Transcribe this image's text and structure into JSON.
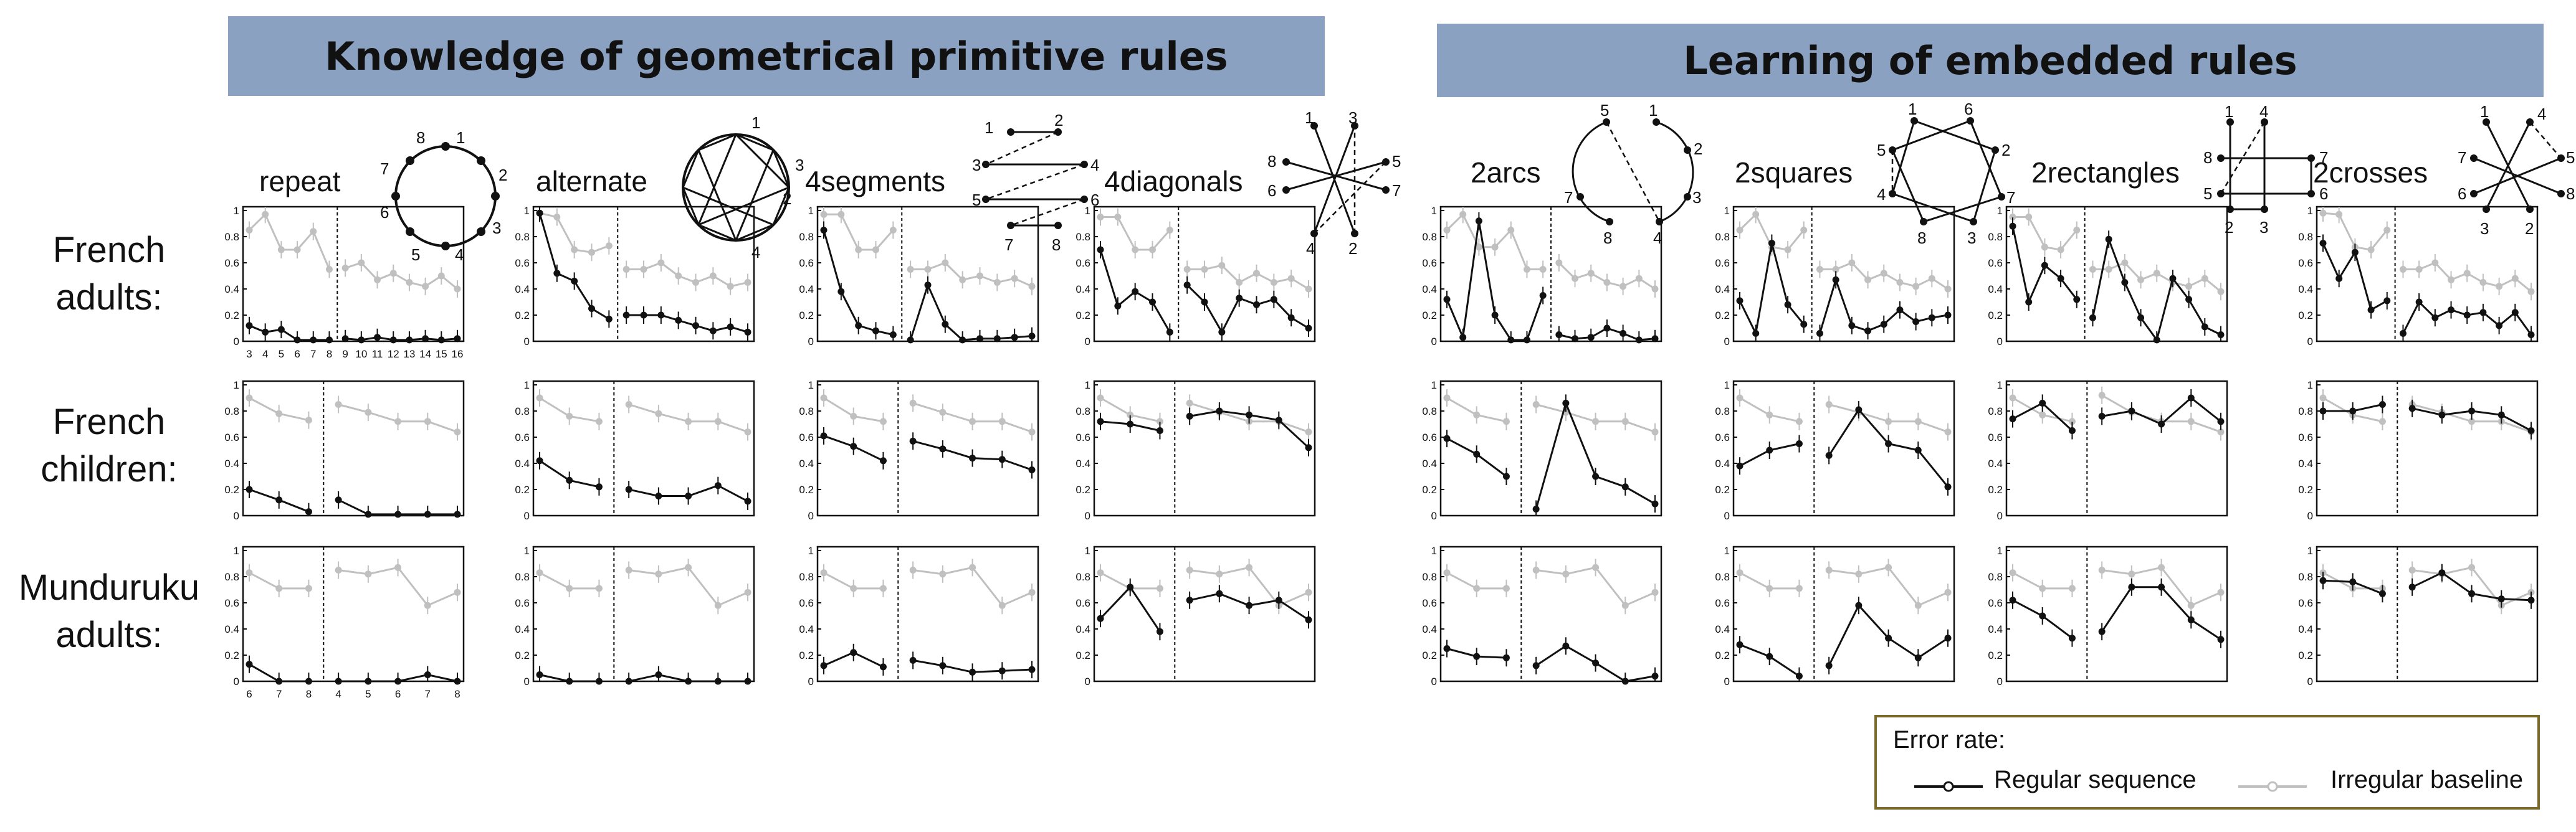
{
  "banners": {
    "left": "Knowledge of geometrical primitive rules",
    "right": "Learning of embedded rules"
  },
  "row_labels": [
    {
      "line1": "French",
      "line2": "adults:"
    },
    {
      "line1": "French",
      "line2": "children:"
    },
    {
      "line1": "Munduruku",
      "line2": "adults:"
    }
  ],
  "conditions": [
    "repeat",
    "alternate",
    "4segments",
    "4diagonals",
    "2arcs",
    "2squares",
    "2rectangles",
    "2crosses"
  ],
  "legend": {
    "title": "Error rate:",
    "regular": "Regular sequence",
    "irregular": "Irregular baseline",
    "regular_color": "#111111",
    "irregular_color": "#c0c0c0"
  },
  "icons": {
    "repeat": [
      "8",
      "1",
      "2",
      "3",
      "4",
      "5",
      "6",
      "7"
    ],
    "alternate": [
      "1",
      "3",
      "2",
      "4"
    ],
    "4segments": [
      "1",
      "2",
      "3",
      "4",
      "5",
      "6",
      "7",
      "8"
    ],
    "4diagonals": [
      "1",
      "3",
      "8",
      "5",
      "6",
      "7",
      "4",
      "2"
    ],
    "2arcs": [
      "5",
      "1",
      "2",
      "3",
      "4",
      "8",
      "7"
    ],
    "2squares": [
      "1",
      "6",
      "5",
      "2",
      "4",
      "7",
      "8",
      "3"
    ],
    "2rectangles": [
      "1",
      "4",
      "8",
      "7",
      "5",
      "6",
      "2",
      "3"
    ],
    "2crosses": [
      "1",
      "4",
      "7",
      "5",
      "6",
      "8",
      "3",
      "2"
    ]
  },
  "chart_data": {
    "type": "line",
    "ylim": [
      0,
      1
    ],
    "yticks": [
      "0",
      "0.2",
      "0.4",
      "0.6",
      "0.8",
      "1"
    ],
    "series_names": [
      "Regular sequence",
      "Irregular baseline"
    ],
    "xticks_row1": [
      "3",
      "4",
      "5",
      "6",
      "7",
      "8",
      "9",
      "10",
      "11",
      "12",
      "13",
      "14",
      "15",
      "16"
    ],
    "xticks_row3": [
      "6",
      "7",
      "8",
      "4",
      "5",
      "6",
      "7",
      "8"
    ],
    "panels": [
      {
        "row": 0,
        "condition": "repeat",
        "split": 6,
        "regular": [
          0.12,
          0.07,
          0.09,
          0.01,
          0.01,
          0.01,
          0.02,
          0.01,
          0.03,
          0.01,
          0.01,
          0.02,
          0.01,
          0.02
        ],
        "irregular": [
          0.85,
          0.97,
          0.7,
          0.7,
          0.84,
          0.55,
          0.56,
          0.6,
          0.47,
          0.52,
          0.45,
          0.42,
          0.5,
          0.4
        ]
      },
      {
        "row": 0,
        "condition": "alternate",
        "split": 5,
        "regular": [
          0.98,
          0.52,
          0.46,
          0.25,
          0.17,
          0.2,
          0.2,
          0.2,
          0.16,
          0.12,
          0.08,
          0.11,
          0.07
        ],
        "irregular": [
          0.98,
          0.95,
          0.7,
          0.68,
          0.73,
          0.55,
          0.55,
          0.6,
          0.5,
          0.45,
          0.5,
          0.42,
          0.45
        ]
      },
      {
        "row": 0,
        "condition": "4segments",
        "split": 5,
        "regular": [
          0.85,
          0.38,
          0.12,
          0.08,
          0.05,
          0.01,
          0.43,
          0.13,
          0.01,
          0.02,
          0.02,
          0.03,
          0.04
        ],
        "irregular": [
          0.97,
          0.97,
          0.7,
          0.7,
          0.85,
          0.55,
          0.55,
          0.6,
          0.47,
          0.5,
          0.45,
          0.48,
          0.42
        ]
      },
      {
        "row": 0,
        "condition": "4diagonals",
        "split": 5,
        "regular": [
          0.7,
          0.27,
          0.38,
          0.3,
          0.07,
          0.43,
          0.3,
          0.07,
          0.33,
          0.28,
          0.32,
          0.18,
          0.1
        ],
        "irregular": [
          0.95,
          0.95,
          0.7,
          0.7,
          0.85,
          0.55,
          0.55,
          0.58,
          0.45,
          0.52,
          0.45,
          0.48,
          0.4
        ]
      },
      {
        "row": 0,
        "condition": "2arcs",
        "split": 7,
        "regular": [
          0.32,
          0.03,
          0.92,
          0.2,
          0.01,
          0.01,
          0.35,
          0.05,
          0.02,
          0.03,
          0.1,
          0.06,
          0.01,
          0.02
        ],
        "irregular": [
          0.85,
          0.97,
          0.72,
          0.72,
          0.85,
          0.55,
          0.55,
          0.6,
          0.48,
          0.52,
          0.45,
          0.42,
          0.48,
          0.4
        ]
      },
      {
        "row": 0,
        "condition": "2squares",
        "split": 5,
        "regular": [
          0.31,
          0.06,
          0.75,
          0.28,
          0.13,
          0.06,
          0.47,
          0.12,
          0.08,
          0.13,
          0.24,
          0.15,
          0.18,
          0.2
        ],
        "irregular": [
          0.85,
          0.97,
          0.72,
          0.7,
          0.85,
          0.55,
          0.55,
          0.6,
          0.47,
          0.52,
          0.45,
          0.42,
          0.48,
          0.4
        ]
      },
      {
        "row": 0,
        "condition": "2rectangles",
        "split": 5,
        "regular": [
          0.88,
          0.3,
          0.58,
          0.48,
          0.32,
          0.18,
          0.78,
          0.45,
          0.18,
          0.01,
          0.48,
          0.32,
          0.11,
          0.05
        ],
        "irregular": [
          0.95,
          0.95,
          0.72,
          0.7,
          0.85,
          0.55,
          0.55,
          0.6,
          0.47,
          0.52,
          0.45,
          0.42,
          0.48,
          0.38
        ]
      },
      {
        "row": 0,
        "condition": "2crosses",
        "split": 5,
        "regular": [
          0.75,
          0.48,
          0.68,
          0.24,
          0.31,
          0.06,
          0.3,
          0.18,
          0.24,
          0.2,
          0.22,
          0.12,
          0.22,
          0.05
        ],
        "irregular": [
          0.98,
          0.97,
          0.72,
          0.7,
          0.85,
          0.55,
          0.55,
          0.6,
          0.47,
          0.52,
          0.45,
          0.42,
          0.48,
          0.38
        ]
      },
      {
        "row": 1,
        "condition": "repeat",
        "split": 3,
        "regular": [
          0.2,
          0.12,
          0.03,
          0.12,
          0.01,
          0.01,
          0.01,
          0.01
        ],
        "irregular": [
          0.9,
          0.78,
          0.73,
          0.85,
          0.79,
          0.72,
          0.72,
          0.64
        ]
      },
      {
        "row": 1,
        "condition": "alternate",
        "split": 3,
        "regular": [
          0.42,
          0.27,
          0.22,
          0.2,
          0.15,
          0.15,
          0.23,
          0.11
        ],
        "irregular": [
          0.9,
          0.76,
          0.72,
          0.85,
          0.78,
          0.72,
          0.72,
          0.64
        ]
      },
      {
        "row": 1,
        "condition": "4segments",
        "split": 3,
        "regular": [
          0.61,
          0.53,
          0.42,
          0.57,
          0.51,
          0.44,
          0.43,
          0.35
        ],
        "irregular": [
          0.9,
          0.76,
          0.72,
          0.86,
          0.79,
          0.72,
          0.72,
          0.64
        ]
      },
      {
        "row": 1,
        "condition": "4diagonals",
        "split": 3,
        "regular": [
          0.72,
          0.7,
          0.65,
          0.76,
          0.8,
          0.77,
          0.73,
          0.52
        ],
        "irregular": [
          0.9,
          0.77,
          0.72,
          0.86,
          0.79,
          0.72,
          0.72,
          0.64
        ]
      },
      {
        "row": 1,
        "condition": "2arcs",
        "split": 3,
        "regular": [
          0.59,
          0.47,
          0.3,
          0.05,
          0.86,
          0.3,
          0.22,
          0.09
        ],
        "irregular": [
          0.9,
          0.77,
          0.72,
          0.85,
          0.79,
          0.72,
          0.72,
          0.64
        ]
      },
      {
        "row": 1,
        "condition": "2squares",
        "split": 3,
        "regular": [
          0.38,
          0.5,
          0.55,
          0.46,
          0.81,
          0.55,
          0.5,
          0.22
        ],
        "irregular": [
          0.9,
          0.77,
          0.72,
          0.85,
          0.79,
          0.72,
          0.72,
          0.64
        ]
      },
      {
        "row": 1,
        "condition": "2rectangles",
        "split": 3,
        "regular": [
          0.74,
          0.86,
          0.65,
          0.76,
          0.8,
          0.7,
          0.9,
          0.72
        ],
        "irregular": [
          0.9,
          0.77,
          0.72,
          0.92,
          0.79,
          0.72,
          0.72,
          0.64
        ]
      },
      {
        "row": 1,
        "condition": "2crosses",
        "split": 3,
        "regular": [
          0.8,
          0.8,
          0.85,
          0.82,
          0.77,
          0.8,
          0.77,
          0.65
        ],
        "irregular": [
          0.9,
          0.77,
          0.72,
          0.85,
          0.79,
          0.72,
          0.72,
          0.64
        ]
      },
      {
        "row": 2,
        "condition": "repeat",
        "split": 3,
        "regular": [
          0.13,
          0.0,
          0.0,
          0.0,
          0.0,
          0.0,
          0.05,
          0.0
        ],
        "irregular": [
          0.83,
          0.71,
          0.71,
          0.85,
          0.82,
          0.87,
          0.58,
          0.68
        ]
      },
      {
        "row": 2,
        "condition": "alternate",
        "split": 3,
        "regular": [
          0.05,
          0.0,
          0.0,
          0.0,
          0.05,
          0.0,
          0.0,
          0.0
        ],
        "irregular": [
          0.83,
          0.71,
          0.71,
          0.85,
          0.82,
          0.87,
          0.58,
          0.68
        ]
      },
      {
        "row": 2,
        "condition": "4segments",
        "split": 3,
        "regular": [
          0.12,
          0.22,
          0.11,
          0.16,
          0.12,
          0.07,
          0.08,
          0.09
        ],
        "irregular": [
          0.83,
          0.71,
          0.71,
          0.85,
          0.82,
          0.87,
          0.58,
          0.68
        ]
      },
      {
        "row": 2,
        "condition": "4diagonals",
        "split": 3,
        "regular": [
          0.48,
          0.72,
          0.38,
          0.62,
          0.67,
          0.58,
          0.62,
          0.47
        ],
        "irregular": [
          0.83,
          0.71,
          0.71,
          0.85,
          0.82,
          0.87,
          0.58,
          0.68
        ]
      },
      {
        "row": 2,
        "condition": "2arcs",
        "split": 3,
        "regular": [
          0.25,
          0.19,
          0.18,
          0.12,
          0.27,
          0.14,
          0.0,
          0.04
        ],
        "irregular": [
          0.83,
          0.71,
          0.71,
          0.85,
          0.82,
          0.87,
          0.58,
          0.68
        ]
      },
      {
        "row": 2,
        "condition": "2squares",
        "split": 3,
        "regular": [
          0.28,
          0.19,
          0.04,
          0.12,
          0.58,
          0.33,
          0.18,
          0.33
        ],
        "irregular": [
          0.83,
          0.71,
          0.71,
          0.85,
          0.82,
          0.87,
          0.58,
          0.68
        ]
      },
      {
        "row": 2,
        "condition": "2rectangles",
        "split": 3,
        "regular": [
          0.62,
          0.5,
          0.33,
          0.38,
          0.72,
          0.72,
          0.47,
          0.32
        ],
        "irregular": [
          0.83,
          0.71,
          0.71,
          0.85,
          0.82,
          0.87,
          0.58,
          0.68
        ]
      },
      {
        "row": 2,
        "condition": "2crosses",
        "split": 3,
        "regular": [
          0.77,
          0.76,
          0.67,
          0.72,
          0.83,
          0.67,
          0.63,
          0.62
        ],
        "irregular": [
          0.83,
          0.71,
          0.71,
          0.85,
          0.82,
          0.87,
          0.58,
          0.68
        ]
      }
    ]
  }
}
